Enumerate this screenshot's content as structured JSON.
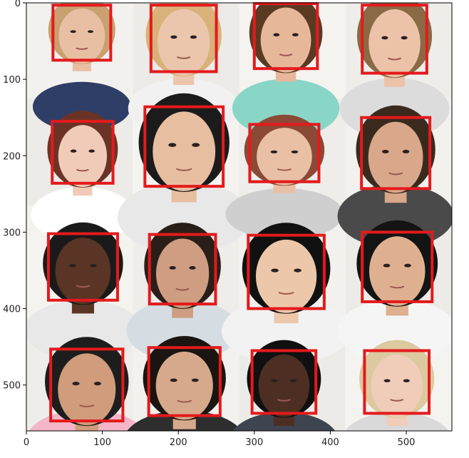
{
  "chart_data": {
    "type": "image",
    "xlim": [
      0,
      560
    ],
    "ylim": [
      560,
      0
    ],
    "x_ticks": [
      0,
      100,
      200,
      300,
      400,
      500
    ],
    "y_ticks": [
      0,
      100,
      200,
      300,
      400,
      500
    ],
    "grid": false,
    "annotation_color": "#e41a1c",
    "tile_rows": 4,
    "tile_cols": 4,
    "tile_boundaries_x": [
      0,
      140,
      280,
      420,
      560
    ],
    "tile_boundaries_y": [
      0,
      125,
      265,
      415,
      560
    ],
    "face_boxes": [
      {
        "row": 0,
        "col": 0,
        "x0": 35,
        "y0": 3,
        "x1": 111,
        "y1": 75,
        "skin": "#e8b99e",
        "hair": "#c9a070"
      },
      {
        "row": 0,
        "col": 0,
        "x0": 0,
        "y0": 0,
        "x1": 0,
        "y1": 0,
        "skin": "#e8b99e",
        "hair": "#c9a070"
      }
    ]
  }
}
